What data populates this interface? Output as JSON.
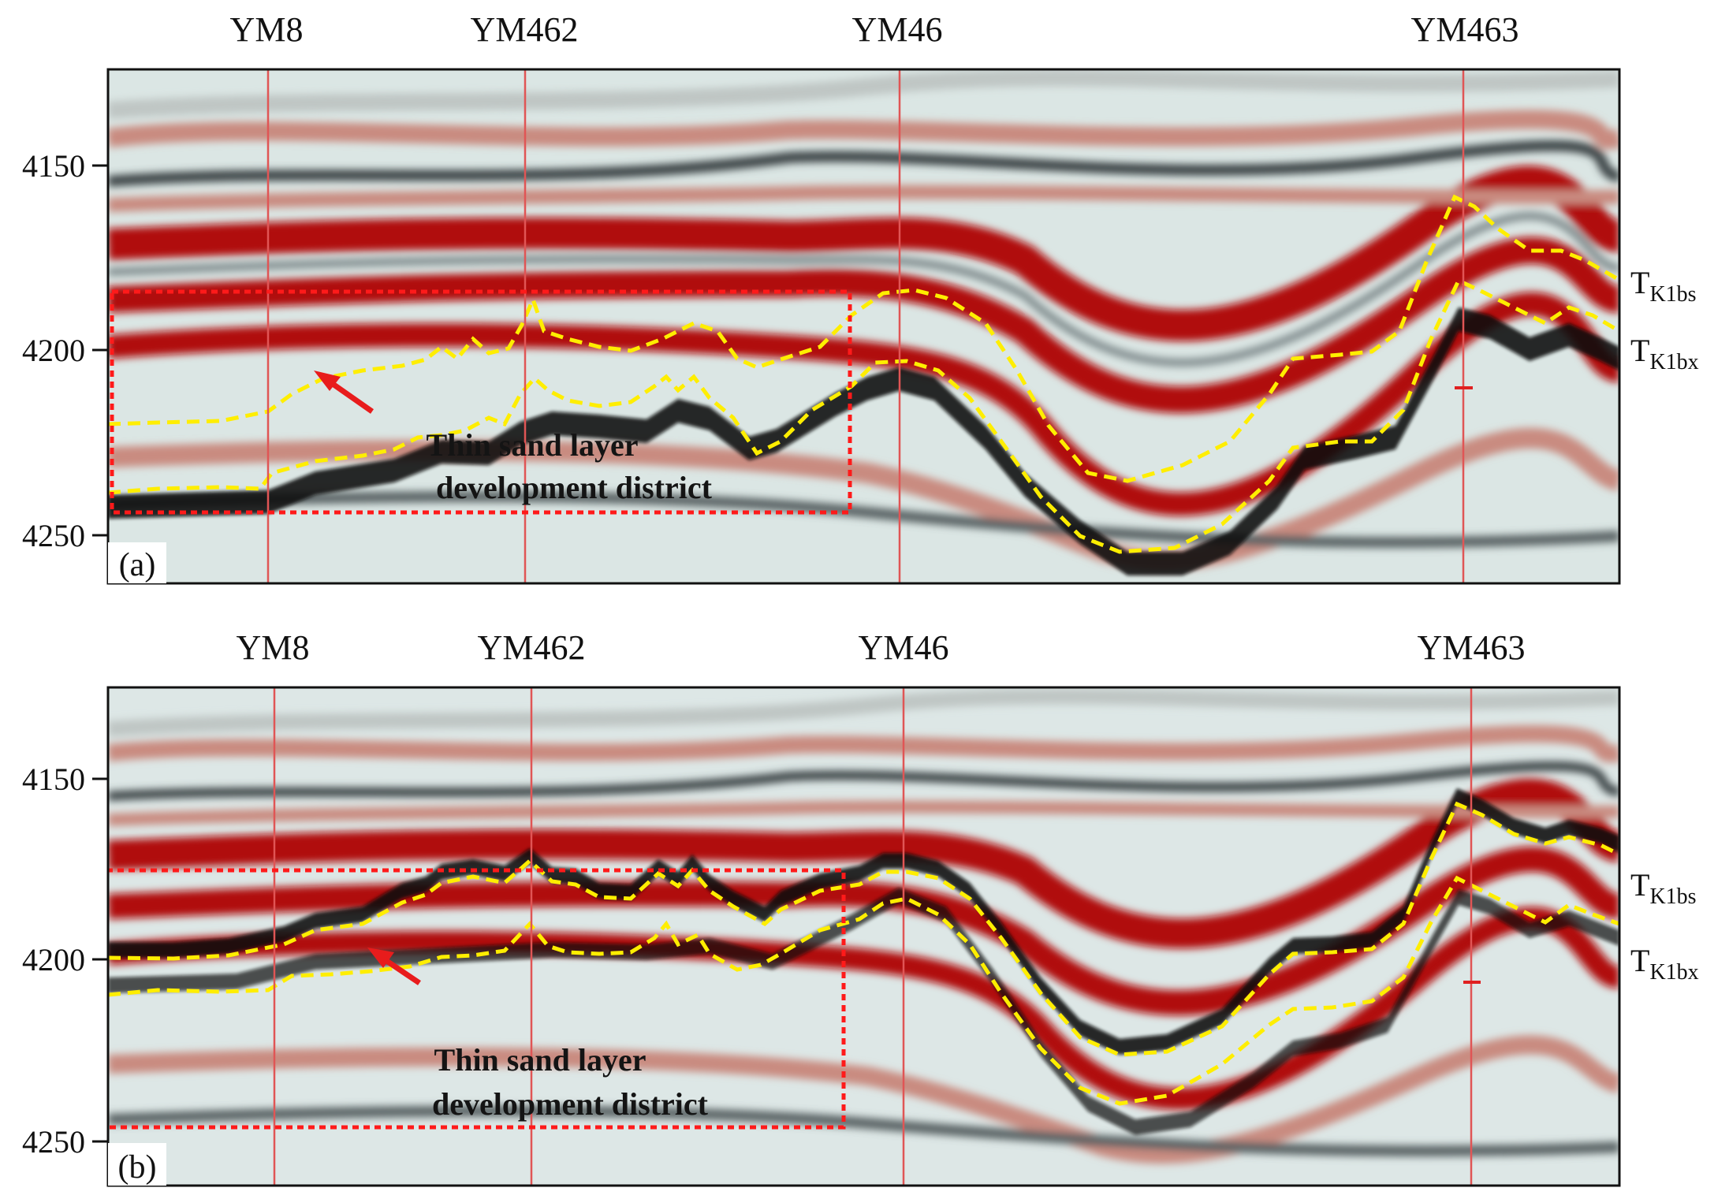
{
  "colors": {
    "trough": "#b00d0d",
    "peak": "#0a0a0a",
    "background": "#dbe6e4",
    "horizon": "#ffee00",
    "box": "#ff1a1a",
    "well": "#e05555",
    "well_tag": "#d946ef"
  },
  "panels": [
    {
      "id": "a",
      "label": "(a)",
      "wells": [
        "YM8",
        "YM462",
        "YM46",
        "YM463"
      ],
      "y_ticks": [
        "4150",
        "4200",
        "4250"
      ],
      "annotation": [
        "Thin sand layer",
        "development district"
      ],
      "horizons": [
        "TK1bs",
        "TK1bx"
      ]
    },
    {
      "id": "b",
      "label": "(b)",
      "wells": [
        "YM8",
        "YM462",
        "YM46",
        "YM463"
      ],
      "y_ticks": [
        "4150",
        "4200",
        "4250"
      ],
      "annotation": [
        "Thin sand layer",
        "development district"
      ],
      "horizons": [
        "TK1bs",
        "TK1bx"
      ]
    }
  ],
  "horizon_labels": {
    "top": {
      "base": "T",
      "sub": "K1bs"
    },
    "bottom": {
      "base": "T",
      "sub": "K1bx"
    }
  }
}
